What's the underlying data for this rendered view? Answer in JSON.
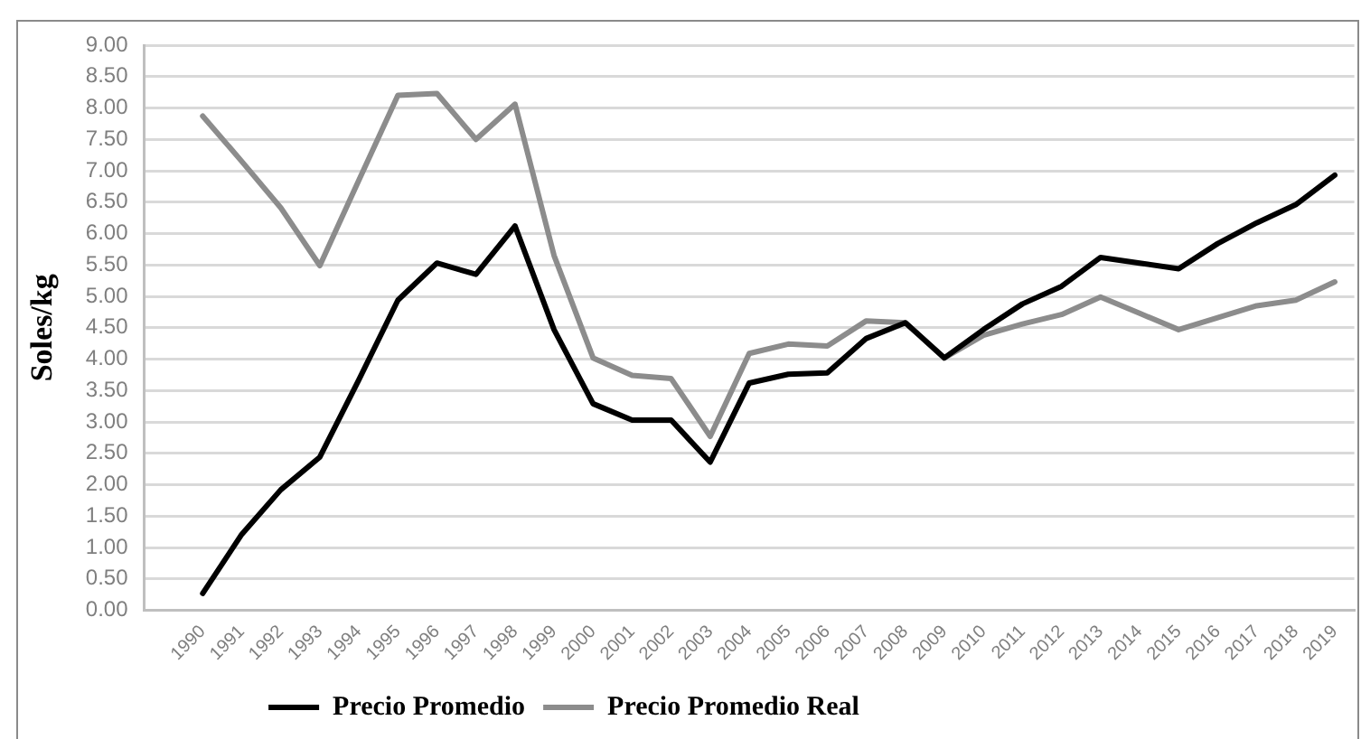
{
  "chart_data": {
    "type": "line",
    "ylabel": "Soles/kg",
    "categories": [
      null,
      "1990",
      "1991",
      "1992",
      "1993",
      "1994",
      "1995",
      "1996",
      "1997",
      "1998",
      "1999",
      "2000",
      "2001",
      "2002",
      "2003",
      "2004",
      "2005",
      "2006",
      "2007",
      "2008",
      "2009",
      "2010",
      "2011",
      "2012",
      "2013",
      "2014",
      "2015",
      "2016",
      "2017",
      "2018",
      "2019"
    ],
    "series": [
      {
        "name": "Precio Promedio",
        "color": "#000000",
        "values": [
          null,
          0.27,
          1.21,
          1.92,
          2.44,
          3.67,
          4.94,
          5.53,
          5.35,
          6.12,
          4.47,
          3.29,
          3.03,
          3.03,
          2.36,
          3.62,
          3.76,
          3.78,
          4.33,
          4.58,
          4.02,
          4.47,
          4.88,
          5.16,
          5.62,
          5.53,
          5.44,
          5.84,
          6.17,
          6.46,
          6.93
        ]
      },
      {
        "name": "Precio Promedio Real",
        "color": "#8c8c8c",
        "values": [
          null,
          7.87,
          7.15,
          6.41,
          5.49,
          6.85,
          8.2,
          8.23,
          7.5,
          8.06,
          5.65,
          4.02,
          3.74,
          3.69,
          2.77,
          4.09,
          4.24,
          4.21,
          4.61,
          4.58,
          4.02,
          4.38,
          4.56,
          4.71,
          4.99,
          4.73,
          4.47,
          4.66,
          4.85,
          4.94,
          5.23
        ]
      }
    ],
    "ylim": [
      0,
      9
    ],
    "yticks": [
      {
        "value": 0,
        "label": "0.00"
      },
      {
        "value": 0.5,
        "label": "0.50"
      },
      {
        "value": 1,
        "label": "1.00"
      },
      {
        "value": 1.5,
        "label": "1.50"
      },
      {
        "value": 2,
        "label": "2.00"
      },
      {
        "value": 2.5,
        "label": "2.50"
      },
      {
        "value": 3,
        "label": "3.00"
      },
      {
        "value": 3.5,
        "label": "3.50"
      },
      {
        "value": 4,
        "label": "4.00"
      },
      {
        "value": 4.5,
        "label": "4.50"
      },
      {
        "value": 5,
        "label": "5.00"
      },
      {
        "value": 5.5,
        "label": "5.50"
      },
      {
        "value": 6,
        "label": "6.00"
      },
      {
        "value": 6.5,
        "label": "6.50"
      },
      {
        "value": 7,
        "label": "7.00"
      },
      {
        "value": 7.5,
        "label": "7.50"
      },
      {
        "value": 8,
        "label": "8.00"
      },
      {
        "value": 8.5,
        "label": "8.50"
      },
      {
        "value": 9,
        "label": "9.00"
      }
    ],
    "grid": "y",
    "legend": "bottom",
    "marker": "none"
  }
}
